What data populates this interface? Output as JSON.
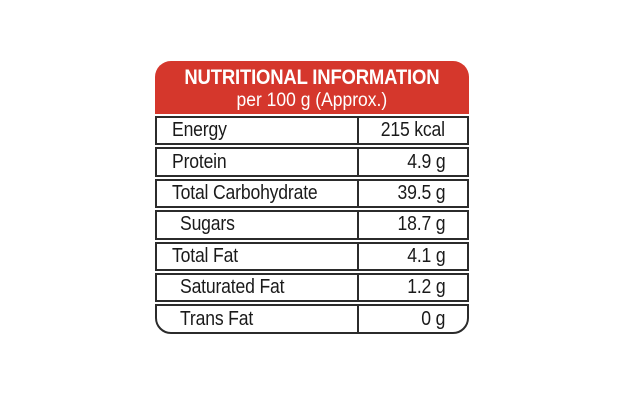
{
  "theme": {
    "page_bg": "#ffffff",
    "header_bg": "#d5372c",
    "header_text": "#ffffff",
    "border": "#2b2b2b",
    "row_bg": "#ffffff",
    "text": "#1a1a1a"
  },
  "label": {
    "header": {
      "title": "NUTRITIONAL INFORMATION",
      "subtitle": "per 100 g (Approx.)"
    },
    "rows": [
      {
        "name": "Energy",
        "value": "215 kcal",
        "indent": false
      },
      {
        "name": "Protein",
        "value": "4.9 g",
        "indent": false
      },
      {
        "name": "Total Carbohydrate",
        "value": "39.5 g",
        "indent": false
      },
      {
        "name": "Sugars",
        "value": "18.7 g",
        "indent": true
      },
      {
        "name": "Total Fat",
        "value": "4.1 g",
        "indent": false
      },
      {
        "name": "Saturated Fat",
        "value": "1.2 g",
        "indent": true
      },
      {
        "name": "Trans Fat",
        "value": "0 g",
        "indent": true
      }
    ]
  }
}
